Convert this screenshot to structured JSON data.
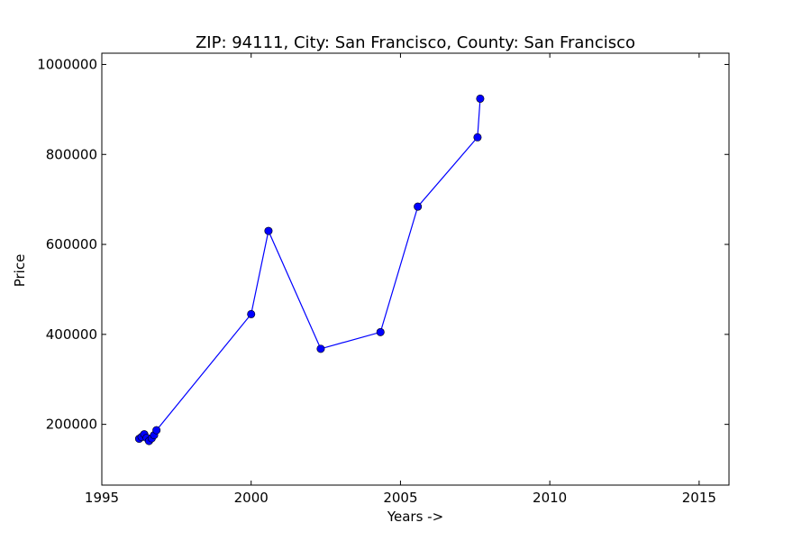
{
  "chart_data": {
    "type": "line",
    "title": "ZIP: 94111, City: San Francisco, County: San Francisco",
    "xlabel": "Years ->",
    "ylabel": "Price",
    "xlim": [
      1995,
      2016
    ],
    "ylim": [
      65000,
      1025000
    ],
    "xticks": [
      1995,
      2000,
      2005,
      2010,
      2015
    ],
    "yticks": [
      200000,
      400000,
      600000,
      800000,
      1000000
    ],
    "grid": false,
    "line_color": "#0000ff",
    "series": [
      {
        "x": [
          1996.25,
          1996.33,
          1996.42,
          1996.5,
          1996.58,
          1996.67,
          1996.75,
          1996.83,
          2000.0,
          2000.58,
          2002.33,
          2004.33,
          2005.58,
          2007.58,
          2007.67
        ],
        "y": [
          168000,
          172000,
          178000,
          170000,
          163000,
          169000,
          176000,
          187000,
          445000,
          630000,
          368000,
          405000,
          684000,
          838000,
          924000
        ]
      }
    ]
  }
}
